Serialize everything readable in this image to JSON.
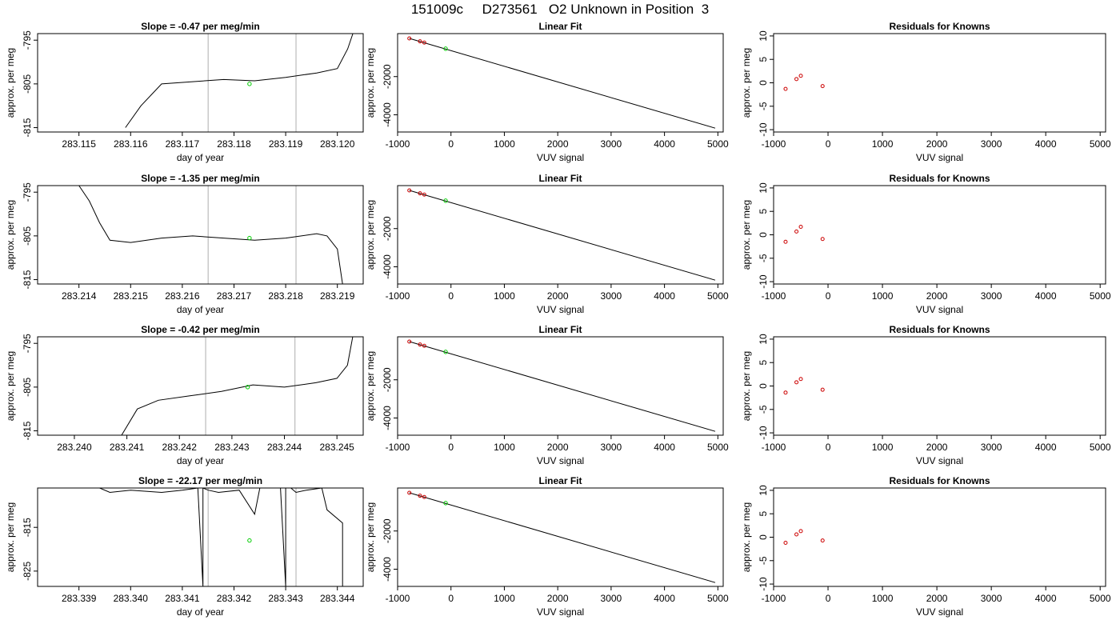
{
  "page_title": "151009c     D273561   O2 Unknown in Position  3",
  "colors": {
    "line": "#000000",
    "marker_red": "#cc0000",
    "marker_green": "#00cc00",
    "vline": "#bbbbbb"
  },
  "chart_data": [
    {
      "type": "line",
      "title": "Slope =  -0.47  per meg/min",
      "xlabel": "day of year",
      "ylabel": "approx. per meg",
      "xlim": [
        283.1142,
        283.1205
      ],
      "ylim": [
        -816,
        -793.5
      ],
      "xticks": [
        "283.115",
        "283.116",
        "283.117",
        "283.118",
        "283.119",
        "283.120"
      ],
      "yticks": [
        "-815",
        "-805",
        "-795"
      ],
      "vlines": [
        283.1175,
        283.1192
      ],
      "marker": {
        "x": 283.1183,
        "y": -805
      },
      "series": [
        {
          "x": [
            283.1159,
            283.1162,
            283.1166,
            283.1172,
            283.1178,
            283.1184,
            283.119,
            283.1196,
            283.12,
            283.1202,
            283.1203
          ],
          "y": [
            -815,
            -810,
            -805,
            -804.5,
            -804,
            -804.3,
            -803.5,
            -802.5,
            -801.5,
            -797,
            -793.5
          ]
        }
      ]
    },
    {
      "type": "line",
      "title": "Linear Fit",
      "xlabel": "VUV signal",
      "ylabel": "approx. per meg",
      "xlim": [
        -1000,
        5100
      ],
      "ylim": [
        -4900,
        250
      ],
      "xticks": [
        "-1000",
        "0",
        "1000",
        "2000",
        "3000",
        "4000",
        "5000"
      ],
      "yticks": [
        "-4000",
        "-2000"
      ],
      "knowns": [
        {
          "x": -780,
          "y": 0
        },
        {
          "x": -580,
          "y": -155
        },
        {
          "x": -500,
          "y": -220
        }
      ],
      "unknown": {
        "x": -100,
        "y": -540
      },
      "series": [
        {
          "x": [
            -780,
            4950
          ],
          "y": [
            0,
            -4700
          ]
        }
      ]
    },
    {
      "type": "scatter",
      "title": "Residuals for Knowns",
      "xlabel": "VUV signal",
      "ylabel": "approx. per meg",
      "xlim": [
        -1000,
        5100
      ],
      "ylim": [
        -10.5,
        10.5
      ],
      "xticks": [
        "-1000",
        "0",
        "1000",
        "2000",
        "3000",
        "4000",
        "5000"
      ],
      "yticks": [
        "-10",
        "-5",
        "0",
        "5",
        "10"
      ],
      "series": [
        {
          "x": [
            -780,
            -580,
            -500,
            -100
          ],
          "y": [
            -1.3,
            0.8,
            1.5,
            -0.7
          ]
        }
      ]
    },
    {
      "type": "line",
      "title": "Slope =  -1.35  per meg/min",
      "xlabel": "day of year",
      "ylabel": "approx. per meg",
      "xlim": [
        283.2132,
        283.2195
      ],
      "ylim": [
        -816,
        -793.5
      ],
      "xticks": [
        "283.214",
        "283.215",
        "283.216",
        "283.217",
        "283.218",
        "283.219"
      ],
      "yticks": [
        "-815",
        "-805",
        "-795"
      ],
      "vlines": [
        283.2165,
        283.2182
      ],
      "marker": {
        "x": 283.2173,
        "y": -805.5
      },
      "series": [
        {
          "x": [
            283.214,
            283.2142,
            283.2144,
            283.2146,
            283.215,
            283.2156,
            283.2162,
            283.2168,
            283.2174,
            283.218,
            283.2186,
            283.2188,
            283.219,
            283.2191
          ],
          "y": [
            -793.5,
            -797,
            -802,
            -806,
            -806.5,
            -805.5,
            -805,
            -805.5,
            -806,
            -805.5,
            -804.5,
            -805,
            -808,
            -816
          ]
        }
      ]
    },
    {
      "type": "line",
      "title": "Linear Fit",
      "xlabel": "VUV signal",
      "ylabel": "approx. per meg",
      "xlim": [
        -1000,
        5100
      ],
      "ylim": [
        -4900,
        250
      ],
      "xticks": [
        "-1000",
        "0",
        "1000",
        "2000",
        "3000",
        "4000",
        "5000"
      ],
      "yticks": [
        "-4000",
        "-2000"
      ],
      "knowns": [
        {
          "x": -780,
          "y": 0
        },
        {
          "x": -580,
          "y": -155
        },
        {
          "x": -500,
          "y": -220
        }
      ],
      "unknown": {
        "x": -100,
        "y": -540
      },
      "series": [
        {
          "x": [
            -780,
            4950
          ],
          "y": [
            0,
            -4700
          ]
        }
      ]
    },
    {
      "type": "scatter",
      "title": "Residuals for Knowns",
      "xlabel": "VUV signal",
      "ylabel": "approx. per meg",
      "xlim": [
        -1000,
        5100
      ],
      "ylim": [
        -10.5,
        10.5
      ],
      "xticks": [
        "-1000",
        "0",
        "1000",
        "2000",
        "3000",
        "4000",
        "5000"
      ],
      "yticks": [
        "-10",
        "-5",
        "0",
        "5",
        "10"
      ],
      "series": [
        {
          "x": [
            -780,
            -580,
            -500,
            -100
          ],
          "y": [
            -1.5,
            0.7,
            1.7,
            -0.9
          ]
        }
      ]
    },
    {
      "type": "line",
      "title": "Slope =  -0.42  per meg/min",
      "xlabel": "day of year",
      "ylabel": "approx. per meg",
      "xlim": [
        283.2393,
        283.2455
      ],
      "ylim": [
        -816,
        -793.5
      ],
      "xticks": [
        "283.240",
        "283.241",
        "283.242",
        "283.243",
        "283.244",
        "283.245"
      ],
      "yticks": [
        "-815",
        "-805",
        "-795"
      ],
      "vlines": [
        283.2425,
        283.2442
      ],
      "marker": {
        "x": 283.2433,
        "y": -805
      },
      "series": [
        {
          "x": [
            283.2409,
            283.2412,
            283.2416,
            283.2422,
            283.2428,
            283.2434,
            283.244,
            283.2446,
            283.245,
            283.2452,
            283.2453
          ],
          "y": [
            -816,
            -810,
            -808,
            -807,
            -806,
            -804.5,
            -805,
            -804,
            -803,
            -800,
            -793.5
          ]
        }
      ]
    },
    {
      "type": "line",
      "title": "Linear Fit",
      "xlabel": "VUV signal",
      "ylabel": "approx. per meg",
      "xlim": [
        -1000,
        5100
      ],
      "ylim": [
        -4900,
        250
      ],
      "xticks": [
        "-1000",
        "0",
        "1000",
        "2000",
        "3000",
        "4000",
        "5000"
      ],
      "yticks": [
        "-4000",
        "-2000"
      ],
      "knowns": [
        {
          "x": -780,
          "y": 0
        },
        {
          "x": -580,
          "y": -155
        },
        {
          "x": -500,
          "y": -220
        }
      ],
      "unknown": {
        "x": -100,
        "y": -540
      },
      "series": [
        {
          "x": [
            -780,
            4950
          ],
          "y": [
            0,
            -4700
          ]
        }
      ]
    },
    {
      "type": "scatter",
      "title": "Residuals for Knowns",
      "xlabel": "VUV signal",
      "ylabel": "approx. per meg",
      "xlim": [
        -1000,
        5100
      ],
      "ylim": [
        -10.5,
        10.5
      ],
      "xticks": [
        "-1000",
        "0",
        "1000",
        "2000",
        "3000",
        "4000",
        "5000"
      ],
      "yticks": [
        "-10",
        "-5",
        "0",
        "5",
        "10"
      ],
      "series": [
        {
          "x": [
            -780,
            -580,
            -500,
            -100
          ],
          "y": [
            -1.4,
            0.8,
            1.5,
            -0.8
          ]
        }
      ]
    },
    {
      "type": "line",
      "title": "Slope =  -22.17  per meg/min",
      "xlabel": "day of year",
      "ylabel": "approx. per meg",
      "xlim": [
        283.3382,
        283.3445
      ],
      "ylim": [
        -828.5,
        -806
      ],
      "xticks": [
        "283.339",
        "283.340",
        "283.341",
        "283.342",
        "283.343",
        "283.344"
      ],
      "yticks": [
        "-825",
        "-815"
      ],
      "vlines": [
        283.3415,
        283.3432
      ],
      "marker": {
        "x": 283.3423,
        "y": -818
      },
      "series": [
        {
          "x": [
            283.3394,
            283.3396,
            283.34,
            283.3406,
            283.341,
            283.3413,
            283.3414,
            283.3414,
            283.3415,
            283.3417,
            283.3421,
            283.3424,
            283.3425,
            283.3429,
            283.343,
            283.343,
            283.3431,
            283.3432,
            283.3434,
            283.3437,
            283.3438,
            283.3441,
            283.3441
          ],
          "y": [
            -806,
            -807,
            -806.5,
            -807,
            -806.5,
            -806,
            -828.5,
            -806,
            -806.5,
            -807,
            -806.5,
            -812,
            -806,
            -806,
            -828.5,
            -806,
            -806,
            -807,
            -806.5,
            -806,
            -811,
            -814,
            -828.5
          ]
        }
      ]
    },
    {
      "type": "line",
      "title": "Linear Fit",
      "xlabel": "VUV signal",
      "ylabel": "approx. per meg",
      "xlim": [
        -1000,
        5100
      ],
      "ylim": [
        -4900,
        250
      ],
      "xticks": [
        "-1000",
        "0",
        "1000",
        "2000",
        "3000",
        "4000",
        "5000"
      ],
      "yticks": [
        "-4000",
        "-2000"
      ],
      "knowns": [
        {
          "x": -780,
          "y": 0
        },
        {
          "x": -580,
          "y": -155
        },
        {
          "x": -500,
          "y": -220
        }
      ],
      "unknown": {
        "x": -100,
        "y": -540
      },
      "series": [
        {
          "x": [
            -780,
            4950
          ],
          "y": [
            0,
            -4700
          ]
        }
      ]
    },
    {
      "type": "scatter",
      "title": "Residuals for Knowns",
      "xlabel": "VUV signal",
      "ylabel": "approx. per meg",
      "xlim": [
        -1000,
        5100
      ],
      "ylim": [
        -10.5,
        10.5
      ],
      "xticks": [
        "-1000",
        "0",
        "1000",
        "2000",
        "3000",
        "4000",
        "5000"
      ],
      "yticks": [
        "-10",
        "-5",
        "0",
        "5",
        "10"
      ],
      "series": [
        {
          "x": [
            -780,
            -580,
            -500,
            -100
          ],
          "y": [
            -1.2,
            0.6,
            1.3,
            -0.7
          ]
        }
      ]
    }
  ]
}
